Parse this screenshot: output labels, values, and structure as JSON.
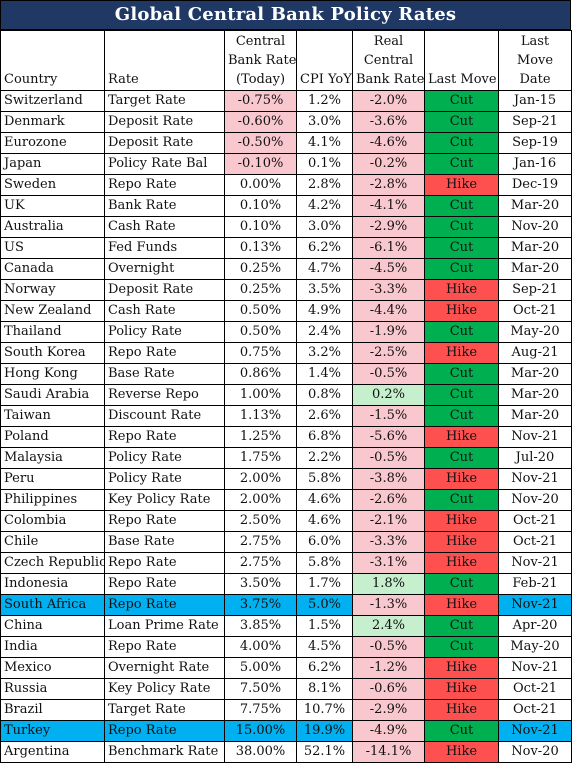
{
  "title": "Global Central Bank Policy Rates",
  "headers": {
    "country": "Country",
    "rate": "Rate",
    "cb_rate": [
      "Central",
      "Bank Rate",
      "(Today)"
    ],
    "cpi": "CPI YoY",
    "real": [
      "Real",
      "Central",
      "Bank Rate"
    ],
    "last_move": "Last Move",
    "last_move_date": [
      "Last",
      "Move",
      "Date"
    ]
  },
  "colors": {
    "title_bg": "#1f3864",
    "cut": "#00b050",
    "hike": "#ff5050",
    "highlight": "#00b0f0",
    "negative_fill": "#f9c7ce",
    "positive_fill": "#c6efce"
  },
  "rows": [
    {
      "country": "Switzerland",
      "rate": "Target Rate",
      "cb": "-0.75%",
      "cpi": "1.2%",
      "real": "-2.0%",
      "move": "Cut",
      "date": "Jan-15"
    },
    {
      "country": "Denmark",
      "rate": "Deposit Rate",
      "cb": "-0.60%",
      "cpi": "3.0%",
      "real": "-3.6%",
      "move": "Cut",
      "date": "Sep-21"
    },
    {
      "country": "Eurozone",
      "rate": "Deposit Rate",
      "cb": "-0.50%",
      "cpi": "4.1%",
      "real": "-4.6%",
      "move": "Cut",
      "date": "Sep-19"
    },
    {
      "country": "Japan",
      "rate": "Policy Rate Bal",
      "cb": "-0.10%",
      "cpi": "0.1%",
      "real": "-0.2%",
      "move": "Cut",
      "date": "Jan-16"
    },
    {
      "country": "Sweden",
      "rate": "Repo Rate",
      "cb": "0.00%",
      "cpi": "2.8%",
      "real": "-2.8%",
      "move": "Hike",
      "date": "Dec-19"
    },
    {
      "country": "UK",
      "rate": "Bank Rate",
      "cb": "0.10%",
      "cpi": "4.2%",
      "real": "-4.1%",
      "move": "Cut",
      "date": "Mar-20"
    },
    {
      "country": "Australia",
      "rate": "Cash Rate",
      "cb": "0.10%",
      "cpi": "3.0%",
      "real": "-2.9%",
      "move": "Cut",
      "date": "Nov-20"
    },
    {
      "country": "US",
      "rate": "Fed Funds",
      "cb": "0.13%",
      "cpi": "6.2%",
      "real": "-6.1%",
      "move": "Cut",
      "date": "Mar-20"
    },
    {
      "country": "Canada",
      "rate": "Overnight",
      "cb": "0.25%",
      "cpi": "4.7%",
      "real": "-4.5%",
      "move": "Cut",
      "date": "Mar-20"
    },
    {
      "country": "Norway",
      "rate": "Deposit Rate",
      "cb": "0.25%",
      "cpi": "3.5%",
      "real": "-3.3%",
      "move": "Hike",
      "date": "Sep-21"
    },
    {
      "country": "New Zealand",
      "rate": "Cash Rate",
      "cb": "0.50%",
      "cpi": "4.9%",
      "real": "-4.4%",
      "move": "Hike",
      "date": "Oct-21"
    },
    {
      "country": "Thailand",
      "rate": "Policy Rate",
      "cb": "0.50%",
      "cpi": "2.4%",
      "real": "-1.9%",
      "move": "Cut",
      "date": "May-20"
    },
    {
      "country": "South Korea",
      "rate": "Repo Rate",
      "cb": "0.75%",
      "cpi": "3.2%",
      "real": "-2.5%",
      "move": "Hike",
      "date": "Aug-21"
    },
    {
      "country": "Hong Kong",
      "rate": "Base Rate",
      "cb": "0.86%",
      "cpi": "1.4%",
      "real": "-0.5%",
      "move": "Cut",
      "date": "Mar-20"
    },
    {
      "country": "Saudi Arabia",
      "rate": "Reverse Repo",
      "cb": "1.00%",
      "cpi": "0.8%",
      "real": "0.2%",
      "move": "Cut",
      "date": "Mar-20"
    },
    {
      "country": "Taiwan",
      "rate": "Discount Rate",
      "cb": "1.13%",
      "cpi": "2.6%",
      "real": "-1.5%",
      "move": "Cut",
      "date": "Mar-20"
    },
    {
      "country": "Poland",
      "rate": "Repo Rate",
      "cb": "1.25%",
      "cpi": "6.8%",
      "real": "-5.6%",
      "move": "Hike",
      "date": "Nov-21"
    },
    {
      "country": "Malaysia",
      "rate": "Policy Rate",
      "cb": "1.75%",
      "cpi": "2.2%",
      "real": "-0.5%",
      "move": "Cut",
      "date": "Jul-20"
    },
    {
      "country": "Peru",
      "rate": "Policy Rate",
      "cb": "2.00%",
      "cpi": "5.8%",
      "real": "-3.8%",
      "move": "Hike",
      "date": "Nov-21"
    },
    {
      "country": "Philippines",
      "rate": "Key Policy Rate",
      "cb": "2.00%",
      "cpi": "4.6%",
      "real": "-2.6%",
      "move": "Cut",
      "date": "Nov-20"
    },
    {
      "country": "Colombia",
      "rate": "Repo Rate",
      "cb": "2.50%",
      "cpi": "4.6%",
      "real": "-2.1%",
      "move": "Hike",
      "date": "Oct-21"
    },
    {
      "country": "Chile",
      "rate": "Base Rate",
      "cb": "2.75%",
      "cpi": "6.0%",
      "real": "-3.3%",
      "move": "Hike",
      "date": "Oct-21"
    },
    {
      "country": "Czech Republic",
      "rate": "Repo Rate",
      "cb": "2.75%",
      "cpi": "5.8%",
      "real": "-3.1%",
      "move": "Hike",
      "date": "Nov-21"
    },
    {
      "country": "Indonesia",
      "rate": "Repo Rate",
      "cb": "3.50%",
      "cpi": "1.7%",
      "real": "1.8%",
      "move": "Cut",
      "date": "Feb-21"
    },
    {
      "country": "South Africa",
      "rate": "Repo Rate",
      "cb": "3.75%",
      "cpi": "5.0%",
      "real": "-1.3%",
      "move": "Hike",
      "date": "Nov-21",
      "highlight": true
    },
    {
      "country": "China",
      "rate": "Loan Prime Rate",
      "cb": "3.85%",
      "cpi": "1.5%",
      "real": "2.4%",
      "move": "Cut",
      "date": "Apr-20"
    },
    {
      "country": "India",
      "rate": "Repo Rate",
      "cb": "4.00%",
      "cpi": "4.5%",
      "real": "-0.5%",
      "move": "Cut",
      "date": "May-20"
    },
    {
      "country": "Mexico",
      "rate": "Overnight Rate",
      "cb": "5.00%",
      "cpi": "6.2%",
      "real": "-1.2%",
      "move": "Hike",
      "date": "Nov-21"
    },
    {
      "country": "Russia",
      "rate": "Key Policy Rate",
      "cb": "7.50%",
      "cpi": "8.1%",
      "real": "-0.6%",
      "move": "Hike",
      "date": "Oct-21"
    },
    {
      "country": "Brazil",
      "rate": "Target Rate",
      "cb": "7.75%",
      "cpi": "10.7%",
      "real": "-2.9%",
      "move": "Hike",
      "date": "Oct-21"
    },
    {
      "country": "Turkey",
      "rate": "Repo Rate",
      "cb": "15.00%",
      "cpi": "19.9%",
      "real": "-4.9%",
      "move": "Cut",
      "date": "Nov-21",
      "highlight": true
    },
    {
      "country": "Argentina",
      "rate": "Benchmark Rate",
      "cb": "38.00%",
      "cpi": "52.1%",
      "real": "-14.1%",
      "move": "Hike",
      "date": "Nov-20"
    }
  ]
}
